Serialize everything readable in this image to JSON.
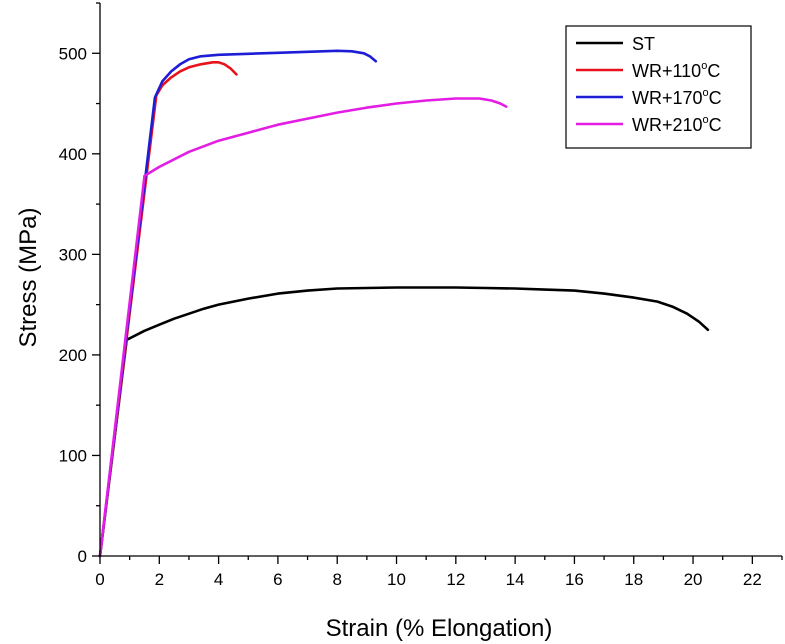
{
  "chart_data": {
    "type": "line",
    "title": "",
    "xlabel": "Strain (% Elongation)",
    "ylabel": "Stress (MPa)",
    "xlim": [
      0,
      23
    ],
    "ylim": [
      0,
      550
    ],
    "xticks": [
      0,
      2,
      4,
      6,
      8,
      10,
      12,
      14,
      16,
      18,
      20,
      22
    ],
    "yticks": [
      0,
      100,
      200,
      300,
      400,
      500
    ],
    "grid": false,
    "legend_position": "top-right",
    "series": [
      {
        "name": "ST",
        "legend_base": "ST",
        "legend_sup": "",
        "legend_tail": "",
        "color": "#000000",
        "x": [
          0,
          0.9,
          1.5,
          2.0,
          2.5,
          3.0,
          3.5,
          4.0,
          5.0,
          6.0,
          7.0,
          8.0,
          9.0,
          10.0,
          11.0,
          12.0,
          13.0,
          14.0,
          15.0,
          16.0,
          17.0,
          18.0,
          18.8,
          19.3,
          19.8,
          20.2,
          20.5
        ],
        "y": [
          0,
          215,
          224,
          230,
          236,
          241,
          246,
          250,
          256,
          261,
          264,
          266,
          266.5,
          267,
          267,
          267,
          266.5,
          266,
          265,
          264,
          261,
          257,
          253,
          248,
          241,
          233,
          225
        ]
      },
      {
        "name": "WR+110°C",
        "legend_base": "WR+110",
        "legend_sup": "o",
        "legend_tail": "C",
        "color": "#e8121c",
        "x": [
          0,
          1.9,
          2.1,
          2.4,
          2.7,
          3.0,
          3.4,
          3.8,
          4.0,
          4.2,
          4.4,
          4.6
        ],
        "y": [
          0,
          458,
          468,
          476,
          482,
          486,
          489,
          491,
          491,
          489,
          485,
          479
        ]
      },
      {
        "name": "WR+170°C",
        "legend_base": "WR+170",
        "legend_sup": "o",
        "legend_tail": "C",
        "color": "#1d1dd6",
        "x": [
          0,
          1.85,
          2.1,
          2.4,
          2.7,
          3.0,
          3.4,
          4.0,
          5.0,
          6.0,
          7.0,
          8.0,
          8.5,
          8.9,
          9.1,
          9.3
        ],
        "y": [
          0,
          456,
          472,
          482,
          489,
          494,
          497,
          498.5,
          499.5,
          500.5,
          501.5,
          502.5,
          502,
          500,
          497,
          492
        ]
      },
      {
        "name": "WR+210°C",
        "legend_base": "WR+210",
        "legend_sup": "o",
        "legend_tail": "C",
        "color": "#e31de3",
        "x": [
          0,
          1.5,
          2.0,
          3.0,
          4.0,
          5.0,
          6.0,
          7.0,
          8.0,
          9.0,
          10.0,
          11.0,
          12.0,
          12.8,
          13.2,
          13.5,
          13.7
        ],
        "y": [
          0,
          378,
          387,
          402,
          413,
          421,
          429,
          435,
          441,
          446,
          450,
          453,
          455,
          455,
          453,
          450,
          447
        ]
      }
    ]
  }
}
